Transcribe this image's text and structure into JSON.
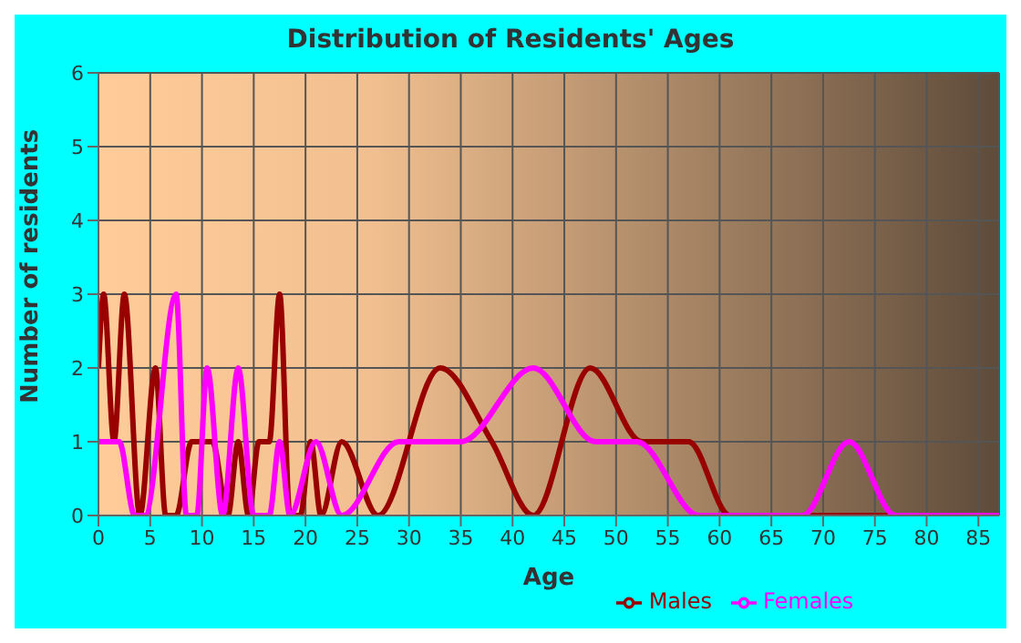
{
  "chart_data": {
    "type": "line",
    "title": "Distribution of Residents' Ages",
    "xlabel": "Age",
    "ylabel": "Number of residents",
    "xlim": [
      0,
      87
    ],
    "xticks": [
      0,
      5,
      10,
      15,
      20,
      25,
      30,
      35,
      40,
      45,
      50,
      55,
      60,
      65,
      70,
      75,
      80,
      85
    ],
    "ylim": [
      0,
      6
    ],
    "yticks": [
      0,
      1,
      2,
      3,
      4,
      5,
      6
    ],
    "grid": true,
    "legend": "bottom",
    "marker": "none",
    "series": [
      {
        "name": "Males",
        "color": "#990000",
        "x": [
          0,
          0.5,
          1.5,
          2.5,
          4,
          5.5,
          6.5,
          7.5,
          9,
          10,
          11,
          12.5,
          13.5,
          14.5,
          15.5,
          16.5,
          17.5,
          18.5,
          19.5,
          20.5,
          21.5,
          23.5,
          27,
          33,
          38,
          42,
          47.5,
          52.5,
          57,
          61,
          65,
          70,
          75,
          80,
          87
        ],
        "values": [
          2,
          3,
          1,
          3,
          0,
          2,
          0,
          0,
          1,
          1,
          1,
          0,
          1,
          0,
          1,
          1,
          3,
          0,
          0,
          1,
          0,
          1,
          0,
          2,
          1,
          0,
          2,
          1,
          1,
          0,
          0,
          0,
          0,
          0,
          0
        ]
      },
      {
        "name": "Females",
        "color": "#ff00ff",
        "x": [
          0,
          2,
          3.5,
          4.5,
          7.5,
          8.5,
          9.5,
          10.5,
          12,
          13.5,
          15,
          16.5,
          17.5,
          18.5,
          21,
          23.5,
          29,
          35,
          42,
          48,
          52,
          58,
          68,
          72.5,
          77,
          87
        ],
        "values": [
          1,
          1,
          0,
          0,
          3,
          0,
          0,
          2,
          0,
          2,
          0,
          0,
          1,
          0,
          1,
          0,
          1,
          1,
          2,
          1,
          1,
          0,
          0,
          1,
          0,
          0
        ]
      }
    ]
  }
}
